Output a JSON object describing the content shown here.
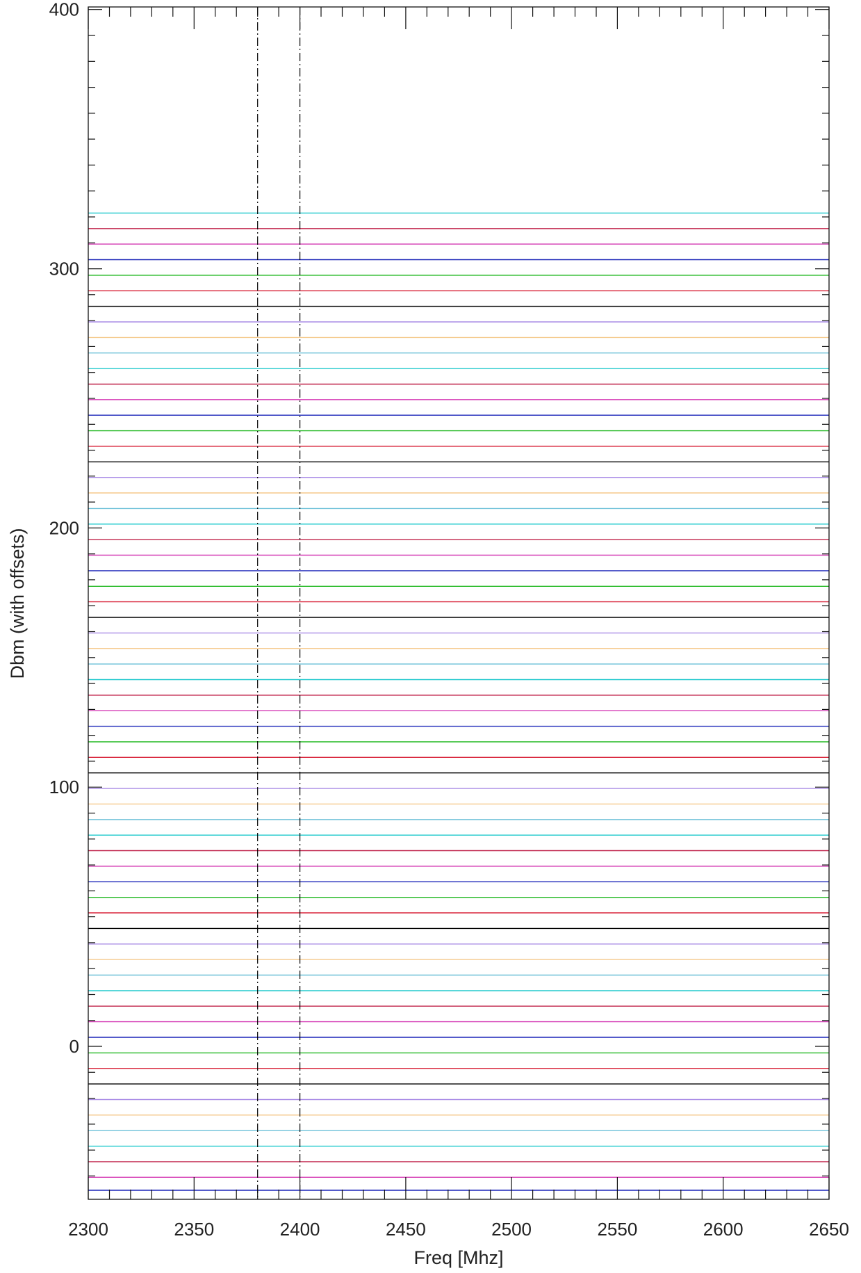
{
  "chart_data": {
    "type": "line",
    "title": "",
    "xlabel": "Freq [Mhz]",
    "ylabel": "Dbm (with offsets)",
    "xlim": [
      2300,
      2650
    ],
    "ylim": [
      -59,
      401
    ],
    "grid": false,
    "legend": "none",
    "x_ticks": [
      2300,
      2350,
      2400,
      2450,
      2500,
      2550,
      2600,
      2650
    ],
    "x_tick_labels": [
      "2300",
      "2350",
      "2400",
      "2450",
      "2500",
      "2550",
      "2600",
      "2650"
    ],
    "y_ticks": [
      0,
      100,
      200,
      300,
      400
    ],
    "y_tick_labels": [
      "0",
      "100",
      "200",
      "300",
      "400"
    ],
    "reference_lines": [
      {
        "x": 2380,
        "style": "dash-dot",
        "color": "#000000"
      },
      {
        "x": 2400,
        "style": "dash-dot",
        "color": "#000000"
      }
    ],
    "series": [
      {
        "values": [
          321.5,
          321.5
        ],
        "color": "#1cc8cc"
      },
      {
        "values": [
          315.5,
          315.5
        ],
        "color": "#c0234a"
      },
      {
        "values": [
          309.5,
          309.5
        ],
        "color": "#d43ab4"
      },
      {
        "values": [
          303.5,
          303.5
        ],
        "color": "#1a24b8"
      },
      {
        "values": [
          297.5,
          297.5
        ],
        "color": "#22b822"
      },
      {
        "values": [
          291.5,
          291.5
        ],
        "color": "#d8243a"
      },
      {
        "values": [
          285.5,
          285.5
        ],
        "color": "#000000"
      },
      {
        "values": [
          279.5,
          279.5
        ],
        "color": "#a98be6"
      },
      {
        "values": [
          273.5,
          273.5
        ],
        "color": "#f5c98c"
      },
      {
        "values": [
          267.5,
          267.5
        ],
        "color": "#6cc0d8"
      },
      {
        "values": [
          261.5,
          261.5
        ],
        "color": "#1cc8cc"
      },
      {
        "values": [
          255.5,
          255.5
        ],
        "color": "#c0234a"
      },
      {
        "values": [
          249.5,
          249.5
        ],
        "color": "#d43ab4"
      },
      {
        "values": [
          243.5,
          243.5
        ],
        "color": "#1a24b8"
      },
      {
        "values": [
          237.5,
          237.5
        ],
        "color": "#22b822"
      },
      {
        "values": [
          231.5,
          231.5
        ],
        "color": "#d8243a"
      },
      {
        "values": [
          225.5,
          225.5
        ],
        "color": "#000000"
      },
      {
        "values": [
          219.5,
          219.5
        ],
        "color": "#a98be6"
      },
      {
        "values": [
          213.5,
          213.5
        ],
        "color": "#f5c98c"
      },
      {
        "values": [
          207.5,
          207.5
        ],
        "color": "#6cc0d8"
      },
      {
        "values": [
          201.5,
          201.5
        ],
        "color": "#1cc8cc"
      },
      {
        "values": [
          195.5,
          195.5
        ],
        "color": "#c0234a"
      },
      {
        "values": [
          189.5,
          189.5
        ],
        "color": "#d43ab4"
      },
      {
        "values": [
          183.5,
          183.5
        ],
        "color": "#1a24b8"
      },
      {
        "values": [
          177.5,
          177.5
        ],
        "color": "#22b822"
      },
      {
        "values": [
          171.5,
          171.5
        ],
        "color": "#d8243a"
      },
      {
        "values": [
          165.5,
          165.5
        ],
        "color": "#000000"
      },
      {
        "values": [
          159.5,
          159.5
        ],
        "color": "#a98be6"
      },
      {
        "values": [
          153.5,
          153.5
        ],
        "color": "#f5c98c"
      },
      {
        "values": [
          147.5,
          147.5
        ],
        "color": "#6cc0d8"
      },
      {
        "values": [
          141.5,
          141.5
        ],
        "color": "#1cc8cc"
      },
      {
        "values": [
          135.5,
          135.5
        ],
        "color": "#c0234a"
      },
      {
        "values": [
          129.5,
          129.5
        ],
        "color": "#d43ab4"
      },
      {
        "values": [
          123.5,
          123.5
        ],
        "color": "#1a24b8"
      },
      {
        "values": [
          117.5,
          117.5
        ],
        "color": "#22b822"
      },
      {
        "values": [
          111.5,
          111.5
        ],
        "color": "#d8243a"
      },
      {
        "values": [
          105.5,
          105.5
        ],
        "color": "#000000"
      },
      {
        "values": [
          99.5,
          99.5
        ],
        "color": "#a98be6"
      },
      {
        "values": [
          93.5,
          93.5
        ],
        "color": "#f5c98c"
      },
      {
        "values": [
          87.5,
          87.5
        ],
        "color": "#6cc0d8"
      },
      {
        "values": [
          81.5,
          81.5
        ],
        "color": "#1cc8cc"
      },
      {
        "values": [
          75.5,
          75.5
        ],
        "color": "#c0234a"
      },
      {
        "values": [
          69.5,
          69.5
        ],
        "color": "#d43ab4"
      },
      {
        "values": [
          63.5,
          63.5
        ],
        "color": "#1a24b8"
      },
      {
        "values": [
          57.5,
          57.5
        ],
        "color": "#22b822"
      },
      {
        "values": [
          51.5,
          51.5
        ],
        "color": "#d8243a"
      },
      {
        "values": [
          45.5,
          45.5
        ],
        "color": "#000000"
      },
      {
        "values": [
          39.5,
          39.5
        ],
        "color": "#a98be6"
      },
      {
        "values": [
          33.5,
          33.5
        ],
        "color": "#f5c98c"
      },
      {
        "values": [
          27.5,
          27.5
        ],
        "color": "#6cc0d8"
      },
      {
        "values": [
          21.5,
          21.5
        ],
        "color": "#1cc8cc"
      },
      {
        "values": [
          15.5,
          15.5
        ],
        "color": "#c0234a"
      },
      {
        "values": [
          9.5,
          9.5
        ],
        "color": "#d43ab4"
      },
      {
        "values": [
          3.5,
          3.5
        ],
        "color": "#1a24b8"
      },
      {
        "values": [
          -2.5,
          -2.5
        ],
        "color": "#22b822"
      },
      {
        "values": [
          -8.5,
          -8.5
        ],
        "color": "#d8243a"
      },
      {
        "values": [
          -14.5,
          -14.5
        ],
        "color": "#000000"
      },
      {
        "values": [
          -20.5,
          -20.5
        ],
        "color": "#a98be6"
      },
      {
        "values": [
          -26.5,
          -26.5
        ],
        "color": "#f5c98c"
      },
      {
        "values": [
          -32.5,
          -32.5
        ],
        "color": "#6cc0d8"
      },
      {
        "values": [
          -38.5,
          -38.5
        ],
        "color": "#1cc8cc"
      },
      {
        "values": [
          -44.5,
          -44.5
        ],
        "color": "#c0234a"
      },
      {
        "values": [
          -50.5,
          -50.5
        ],
        "color": "#d43ab4"
      },
      {
        "values": [
          -55.5,
          -55.5
        ],
        "color": "#1a24b8"
      }
    ],
    "x": [
      2300,
      2650
    ]
  }
}
